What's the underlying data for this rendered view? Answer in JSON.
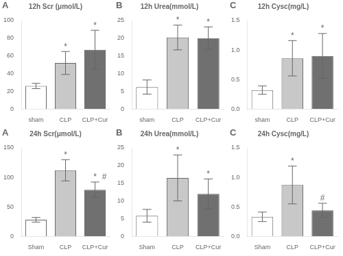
{
  "chart_data": [
    {
      "type": "bar",
      "panel_label": "A",
      "title": "12h Scr (μmol/L)",
      "categories": [
        "sham",
        "CLP",
        "CLP+Cur"
      ],
      "values": [
        26,
        52,
        67
      ],
      "errors": [
        3,
        13,
        22
      ],
      "colors": [
        "#ffffff",
        "#c8c8c8",
        "#707070"
      ],
      "ylim": [
        0,
        100
      ],
      "yticks": [
        0,
        20,
        40,
        60,
        80,
        100
      ],
      "grid": false,
      "annotations": [
        {
          "category": "CLP",
          "text": "*"
        },
        {
          "category": "CLP+Cur",
          "text": "*"
        }
      ]
    },
    {
      "type": "bar",
      "panel_label": "B",
      "title": "12h Urea(mmol/L)",
      "categories": [
        "sham",
        "CLP",
        "CLP+Cur"
      ],
      "values": [
        6.2,
        20.2,
        20.0
      ],
      "errors": [
        2.0,
        3.5,
        3.2
      ],
      "colors": [
        "#ffffff",
        "#c8c8c8",
        "#707070"
      ],
      "ylim": [
        0,
        25
      ],
      "yticks": [
        0,
        5,
        10,
        15,
        20,
        25
      ],
      "grid": false,
      "annotations": [
        {
          "category": "CLP",
          "text": "*"
        },
        {
          "category": "CLP+Cur",
          "text": "*"
        }
      ]
    },
    {
      "type": "bar",
      "panel_label": "C",
      "title": "12h Cysc(mg/L)",
      "categories": [
        "sham",
        "CLP",
        "CLP+Cur"
      ],
      "values": [
        0.32,
        0.86,
        0.9
      ],
      "errors": [
        0.07,
        0.3,
        0.38
      ],
      "colors": [
        "#ffffff",
        "#c8c8c8",
        "#707070"
      ],
      "ylim": [
        0.0,
        1.5
      ],
      "yticks": [
        {
          "value": 0.0,
          "label": "0.0"
        },
        0.5,
        {
          "value": 1.0,
          "label": "1.0"
        },
        1.5
      ],
      "grid": false,
      "annotations": [
        {
          "category": "CLP",
          "text": "*"
        },
        {
          "category": "CLP+Cur",
          "text": "*"
        }
      ]
    },
    {
      "type": "bar",
      "panel_label": "A",
      "title": "24h Scr(μmol/L)",
      "categories": [
        "Sham",
        "CLP",
        "CLP+Cur"
      ],
      "values": [
        28,
        112,
        79
      ],
      "errors": [
        4,
        18,
        13
      ],
      "colors": [
        "#ffffff",
        "#c8c8c8",
        "#707070"
      ],
      "ylim": [
        0,
        150
      ],
      "yticks": [
        0,
        50,
        100,
        150
      ],
      "grid": false,
      "annotations": [
        {
          "category": "CLP",
          "text": "*"
        },
        {
          "category": "CLP+Cur",
          "text": "*"
        },
        {
          "category": "CLP+Cur",
          "text": "#"
        }
      ]
    },
    {
      "type": "bar",
      "panel_label": "B",
      "title": "24h Urea(mmol/L)",
      "categories": [
        "Sham",
        "CLP",
        "CLP+Cur"
      ],
      "values": [
        5.8,
        16.5,
        12.0
      ],
      "errors": [
        1.8,
        6.5,
        4.2
      ],
      "colors": [
        "#ffffff",
        "#c8c8c8",
        "#707070"
      ],
      "ylim": [
        0,
        25
      ],
      "yticks": [
        0,
        5,
        10,
        15,
        20,
        25
      ],
      "grid": false,
      "annotations": [
        {
          "category": "CLP",
          "text": "*"
        },
        {
          "category": "CLP+Cur",
          "text": "*"
        }
      ]
    },
    {
      "type": "bar",
      "panel_label": "C",
      "title": "24h Cysc(mg/L)",
      "categories": [
        "Sham",
        "CLP",
        "CLP+Cur"
      ],
      "values": [
        0.33,
        0.87,
        0.44
      ],
      "errors": [
        0.08,
        0.32,
        0.12
      ],
      "colors": [
        "#ffffff",
        "#c8c8c8",
        "#707070"
      ],
      "ylim": [
        0.0,
        1.5
      ],
      "yticks": [
        {
          "value": 0.0,
          "label": "0.0"
        },
        0.5,
        {
          "value": 1.0,
          "label": "1.0"
        },
        1.5
      ],
      "grid": false,
      "annotations": [
        {
          "category": "CLP",
          "text": "*"
        },
        {
          "category": "CLP+Cur",
          "text": "#"
        }
      ]
    }
  ]
}
